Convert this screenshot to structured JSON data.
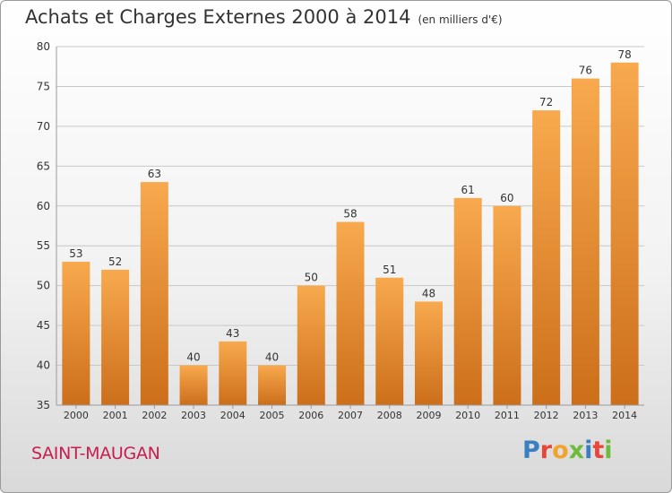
{
  "header": {
    "title": "Achats et Charges Externes 2000 à 2014",
    "subtitle": "(en milliers d'€)"
  },
  "footer": {
    "commune": "SAINT-MAUGAN",
    "logo_text": "Proxiti",
    "logo_colors": [
      "#3a7fc1",
      "#e8463a",
      "#f2a32b",
      "#6cbb3c",
      "#3a7fc1",
      "#e8463a",
      "#6cbb3c"
    ]
  },
  "colors": {
    "bar_light": "#f8a94e",
    "bar_dark": "#cc6e1a",
    "grid": "#c8c8c8",
    "axis_text": "#333333"
  },
  "chart_data": {
    "type": "bar",
    "categories": [
      "2000",
      "2001",
      "2002",
      "2003",
      "2004",
      "2005",
      "2006",
      "2007",
      "2008",
      "2009",
      "2010",
      "2011",
      "2012",
      "2013",
      "2014"
    ],
    "values": [
      53,
      52,
      63,
      40,
      43,
      40,
      50,
      58,
      51,
      48,
      61,
      60,
      72,
      76,
      78
    ],
    "ylim": [
      35,
      80
    ],
    "yticks": [
      35,
      40,
      45,
      50,
      55,
      60,
      65,
      70,
      75,
      80
    ],
    "grid": true,
    "data_labels": true
  }
}
